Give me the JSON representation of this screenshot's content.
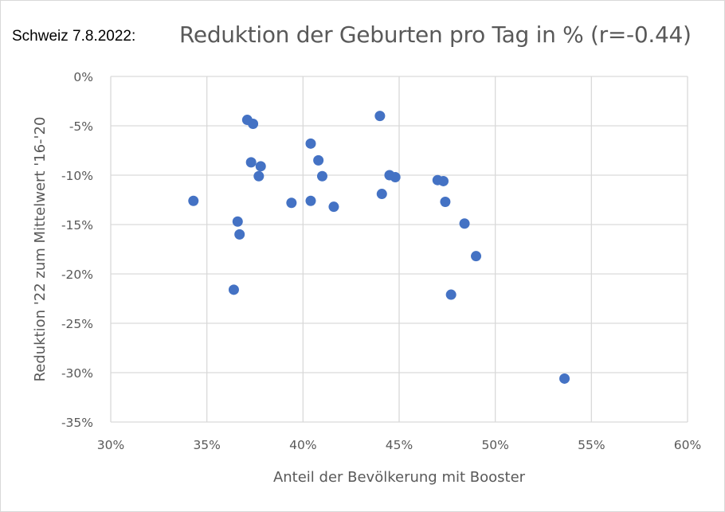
{
  "chart_data": {
    "type": "scatter",
    "title_prefix": "Schweiz 7.8.2022:",
    "title": "Reduktion der Geburten pro Tag in % (r=-0.44)",
    "xlabel": "Anteil der Bevölkerung mit Booster",
    "ylabel": "Reduktion '22 zum Mittelwert '16-'20",
    "xlim": [
      30,
      60
    ],
    "ylim": [
      -35,
      0
    ],
    "xticks": [
      30,
      35,
      40,
      45,
      50,
      55,
      60
    ],
    "yticks": [
      0,
      -5,
      -10,
      -15,
      -20,
      -25,
      -30,
      -35
    ],
    "xtick_labels": [
      "30%",
      "35%",
      "40%",
      "45%",
      "50%",
      "55%",
      "60%"
    ],
    "ytick_labels": [
      "0%",
      "-5%",
      "-10%",
      "-15%",
      "-20%",
      "-25%",
      "-30%",
      "-35%"
    ],
    "grid": true,
    "marker_color": "#4472C4",
    "points": [
      {
        "x": 34.3,
        "y": -12.6
      },
      {
        "x": 37.1,
        "y": -4.4
      },
      {
        "x": 37.4,
        "y": -4.8
      },
      {
        "x": 37.3,
        "y": -8.7
      },
      {
        "x": 37.8,
        "y": -9.1
      },
      {
        "x": 37.7,
        "y": -10.1
      },
      {
        "x": 36.6,
        "y": -14.7
      },
      {
        "x": 36.7,
        "y": -16.0
      },
      {
        "x": 36.4,
        "y": -21.6
      },
      {
        "x": 39.4,
        "y": -12.8
      },
      {
        "x": 40.4,
        "y": -6.8
      },
      {
        "x": 40.8,
        "y": -8.5
      },
      {
        "x": 41.0,
        "y": -10.1
      },
      {
        "x": 40.4,
        "y": -12.6
      },
      {
        "x": 41.6,
        "y": -13.2
      },
      {
        "x": 44.0,
        "y": -4.0
      },
      {
        "x": 44.5,
        "y": -10.0
      },
      {
        "x": 44.8,
        "y": -10.2
      },
      {
        "x": 44.1,
        "y": -11.9
      },
      {
        "x": 47.0,
        "y": -10.5
      },
      {
        "x": 47.3,
        "y": -10.6
      },
      {
        "x": 47.4,
        "y": -12.7
      },
      {
        "x": 48.4,
        "y": -14.9
      },
      {
        "x": 49.0,
        "y": -18.2
      },
      {
        "x": 47.7,
        "y": -22.1
      },
      {
        "x": 53.6,
        "y": -30.6
      }
    ]
  }
}
